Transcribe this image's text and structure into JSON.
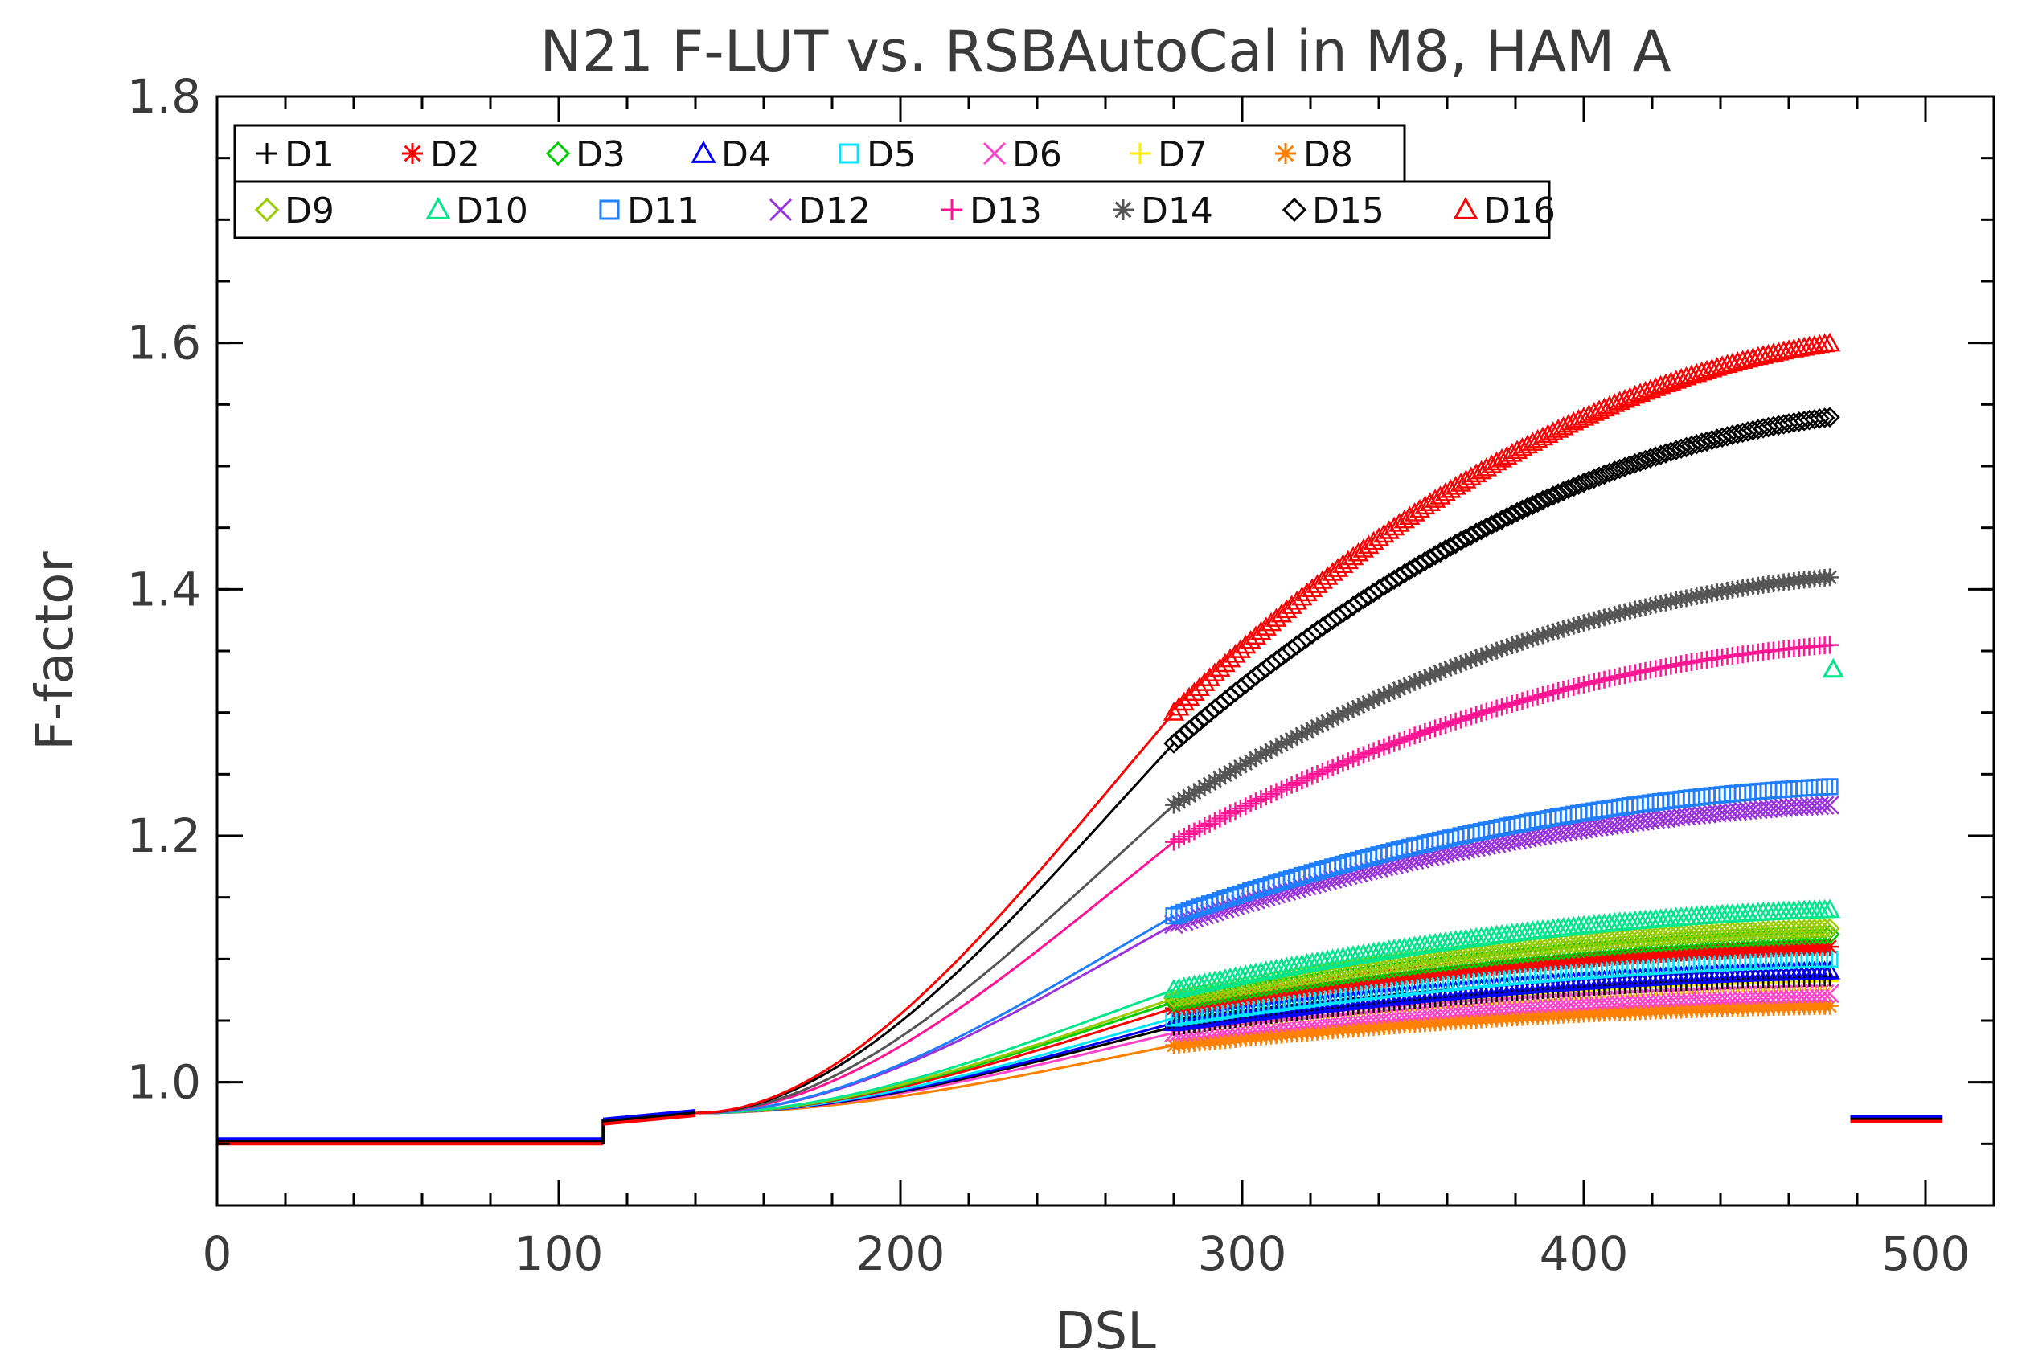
{
  "chart_data": {
    "type": "line",
    "title": "N21 F-LUT vs. RSBAutoCal in M8, HAM A",
    "xlabel": "DSL",
    "ylabel": "F-factor",
    "xlim": [
      0,
      520
    ],
    "ylim": [
      0.9,
      1.8
    ],
    "xticks": [
      0,
      100,
      200,
      300,
      400,
      500
    ],
    "xtick_labels": [
      "0",
      "100",
      "200",
      "300",
      "400",
      "500"
    ],
    "yticks": [
      1.0,
      1.2,
      1.4,
      1.6,
      1.8
    ],
    "ytick_labels": [
      "1.0",
      "1.2",
      "1.4",
      "1.6",
      "1.8"
    ],
    "legend_position": "top-left",
    "flut": {
      "segments": [
        {
          "x": [
            0,
            113
          ],
          "y": [
            0.952,
            0.952
          ]
        },
        {
          "x": [
            113,
            140
          ],
          "y": [
            0.968,
            0.975
          ]
        },
        {
          "x": [
            478,
            505
          ],
          "y": [
            0.97,
            0.97
          ]
        }
      ],
      "ramp_start": {
        "x": 140,
        "y": 0.975
      }
    },
    "series": [
      {
        "name": "D1",
        "marker": "plus",
        "color": "#000000",
        "y280": 1.045,
        "y473": 1.085
      },
      {
        "name": "D2",
        "marker": "asterisk",
        "color": "#ff0000",
        "y280": 1.06,
        "y473": 1.11
      },
      {
        "name": "D3",
        "marker": "diamond",
        "color": "#00cc00",
        "y280": 1.065,
        "y473": 1.12
      },
      {
        "name": "D4",
        "marker": "triangle",
        "color": "#0000ff",
        "y280": 1.048,
        "y473": 1.09
      },
      {
        "name": "D5",
        "marker": "square",
        "color": "#00e5ff",
        "y280": 1.052,
        "y473": 1.1
      },
      {
        "name": "D6",
        "marker": "x",
        "color": "#ff44cc",
        "y280": 1.04,
        "y473": 1.072
      },
      {
        "name": "D7",
        "marker": "plus",
        "color": "#ffee00",
        "y280": 1.045,
        "y473": 1.082
      },
      {
        "name": "D8",
        "marker": "asterisk",
        "color": "#ff8000",
        "y280": 1.03,
        "y473": 1.062
      },
      {
        "name": "D9",
        "marker": "diamond",
        "color": "#99cc00",
        "y280": 1.068,
        "y473": 1.125
      },
      {
        "name": "D10",
        "marker": "triangle",
        "color": "#00e68a",
        "y280": 1.075,
        "y473": 1.14
      },
      {
        "name": "D11",
        "marker": "square",
        "color": "#1f7fff",
        "y280": 1.135,
        "y473": 1.24
      },
      {
        "name": "D12",
        "marker": "x",
        "color": "#9933dd",
        "y280": 1.128,
        "y473": 1.225
      },
      {
        "name": "D13",
        "marker": "plus",
        "color": "#ff1493",
        "y280": 1.195,
        "y473": 1.355
      },
      {
        "name": "D14",
        "marker": "asterisk",
        "color": "#555555",
        "y280": 1.225,
        "y473": 1.41
      },
      {
        "name": "D15",
        "marker": "diamond",
        "color": "#000000",
        "y280": 1.275,
        "y473": 1.54
      },
      {
        "name": "D16",
        "marker": "triangle",
        "color": "#ff0000",
        "y280": 1.3,
        "y473": 1.6
      }
    ],
    "outlier": {
      "series": "D10",
      "x": 473,
      "y": 1.335
    }
  }
}
